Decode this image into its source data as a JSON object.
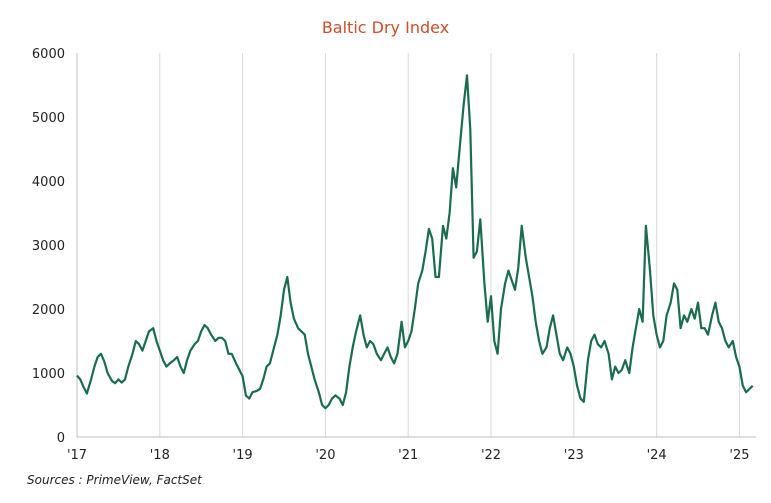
{
  "source_note": "Sources : PrimeView, FactSet",
  "colors": {
    "title": "#c8502a",
    "line": "#1a6b4f",
    "grid": "#d9d9d9",
    "axis": "#bfbfbf"
  },
  "chart_data": {
    "type": "line",
    "title": "Baltic Dry Index",
    "xlabel": "",
    "ylabel": "",
    "xlim": [
      2017.0,
      2025.2
    ],
    "ylim": [
      0,
      6000
    ],
    "y_ticks": [
      0,
      1000,
      2000,
      3000,
      4000,
      5000,
      6000
    ],
    "x_ticks": [
      {
        "value": 2017,
        "label": "'17"
      },
      {
        "value": 2018,
        "label": "'18"
      },
      {
        "value": 2019,
        "label": "'19"
      },
      {
        "value": 2020,
        "label": "'20"
      },
      {
        "value": 2021,
        "label": "'21"
      },
      {
        "value": 2022,
        "label": "'22"
      },
      {
        "value": 2023,
        "label": "'23"
      },
      {
        "value": 2024,
        "label": "'24"
      },
      {
        "value": 2025,
        "label": "'25"
      }
    ],
    "grid": {
      "vertical": true,
      "horizontal": false
    },
    "series": [
      {
        "x": [
          2017.0,
          2017.04,
          2017.08,
          2017.12,
          2017.17,
          2017.21,
          2017.25,
          2017.29,
          2017.33,
          2017.37,
          2017.42,
          2017.46,
          2017.5,
          2017.54,
          2017.58,
          2017.62,
          2017.67,
          2017.71,
          2017.75,
          2017.79,
          2017.83,
          2017.87,
          2017.92,
          2017.96,
          2018.0,
          2018.04,
          2018.08,
          2018.12,
          2018.17,
          2018.21,
          2018.25,
          2018.29,
          2018.33,
          2018.37,
          2018.42,
          2018.46,
          2018.5,
          2018.54,
          2018.58,
          2018.62,
          2018.67,
          2018.71,
          2018.75,
          2018.79,
          2018.83,
          2018.87,
          2018.92,
          2018.96,
          2019.0,
          2019.04,
          2019.08,
          2019.12,
          2019.17,
          2019.21,
          2019.25,
          2019.29,
          2019.33,
          2019.37,
          2019.42,
          2019.46,
          2019.5,
          2019.54,
          2019.58,
          2019.62,
          2019.67,
          2019.71,
          2019.75,
          2019.79,
          2019.83,
          2019.87,
          2019.92,
          2019.96,
          2020.0,
          2020.04,
          2020.08,
          2020.12,
          2020.17,
          2020.21,
          2020.25,
          2020.29,
          2020.33,
          2020.37,
          2020.42,
          2020.46,
          2020.5,
          2020.54,
          2020.58,
          2020.62,
          2020.67,
          2020.71,
          2020.75,
          2020.79,
          2020.83,
          2020.87,
          2020.92,
          2020.96,
          2021.0,
          2021.04,
          2021.08,
          2021.12,
          2021.17,
          2021.21,
          2021.25,
          2021.29,
          2021.33,
          2021.37,
          2021.42,
          2021.46,
          2021.5,
          2021.54,
          2021.58,
          2021.62,
          2021.67,
          2021.71,
          2021.75,
          2021.79,
          2021.83,
          2021.87,
          2021.92,
          2021.96,
          2022.0,
          2022.04,
          2022.08,
          2022.12,
          2022.17,
          2022.21,
          2022.25,
          2022.29,
          2022.33,
          2022.37,
          2022.42,
          2022.46,
          2022.5,
          2022.54,
          2022.58,
          2022.62,
          2022.67,
          2022.71,
          2022.75,
          2022.79,
          2022.83,
          2022.87,
          2022.92,
          2022.96,
          2023.0,
          2023.04,
          2023.08,
          2023.12,
          2023.17,
          2023.21,
          2023.25,
          2023.29,
          2023.33,
          2023.37,
          2023.42,
          2023.46,
          2023.5,
          2023.54,
          2023.58,
          2023.62,
          2023.67,
          2023.71,
          2023.75,
          2023.79,
          2023.83,
          2023.87,
          2023.92,
          2023.96,
          2024.0,
          2024.04,
          2024.08,
          2024.12,
          2024.17,
          2024.21,
          2024.25,
          2024.29,
          2024.33,
          2024.37,
          2024.42,
          2024.46,
          2024.5,
          2024.54,
          2024.58,
          2024.62,
          2024.67,
          2024.71,
          2024.75,
          2024.79,
          2024.83,
          2024.87,
          2024.92,
          2024.96,
          2025.0,
          2025.04,
          2025.08,
          2025.12,
          2025.16
        ],
        "values": [
          960,
          900,
          780,
          680,
          900,
          1100,
          1250,
          1300,
          1180,
          1000,
          880,
          840,
          900,
          850,
          900,
          1100,
          1300,
          1500,
          1450,
          1350,
          1500,
          1650,
          1700,
          1500,
          1350,
          1200,
          1100,
          1150,
          1200,
          1250,
          1100,
          1000,
          1200,
          1350,
          1450,
          1500,
          1650,
          1750,
          1700,
          1600,
          1500,
          1550,
          1550,
          1500,
          1300,
          1300,
          1150,
          1050,
          950,
          650,
          600,
          700,
          720,
          750,
          900,
          1100,
          1150,
          1350,
          1600,
          1900,
          2300,
          2500,
          2100,
          1850,
          1700,
          1650,
          1600,
          1300,
          1100,
          900,
          700,
          500,
          450,
          500,
          600,
          650,
          600,
          500,
          700,
          1100,
          1400,
          1650,
          1900,
          1600,
          1400,
          1500,
          1450,
          1300,
          1200,
          1300,
          1400,
          1250,
          1150,
          1300,
          1800,
          1400,
          1500,
          1650,
          2000,
          2400,
          2600,
          2900,
          3250,
          3100,
          2500,
          2500,
          3300,
          3100,
          3500,
          4200,
          3900,
          4500,
          5200,
          5650,
          4800,
          2800,
          2900,
          3400,
          2400,
          1800,
          2200,
          1500,
          1300,
          2000,
          2400,
          2600,
          2450,
          2300,
          2650,
          3300,
          2800,
          2500,
          2200,
          1800,
          1500,
          1300,
          1400,
          1700,
          1900,
          1600,
          1300,
          1200,
          1400,
          1300,
          1100,
          800,
          600,
          550,
          1200,
          1500,
          1600,
          1450,
          1400,
          1500,
          1300,
          900,
          1100,
          1000,
          1050,
          1200,
          1000,
          1400,
          1700,
          2000,
          1800,
          3300,
          2600,
          1900,
          1600,
          1400,
          1500,
          1900,
          2100,
          2400,
          2300,
          1700,
          1900,
          1800,
          2000,
          1850,
          2100,
          1700,
          1700,
          1600,
          1900,
          2100,
          1800,
          1700,
          1500,
          1400,
          1500,
          1250,
          1100,
          800,
          700,
          750,
          800
        ]
      }
    ]
  }
}
